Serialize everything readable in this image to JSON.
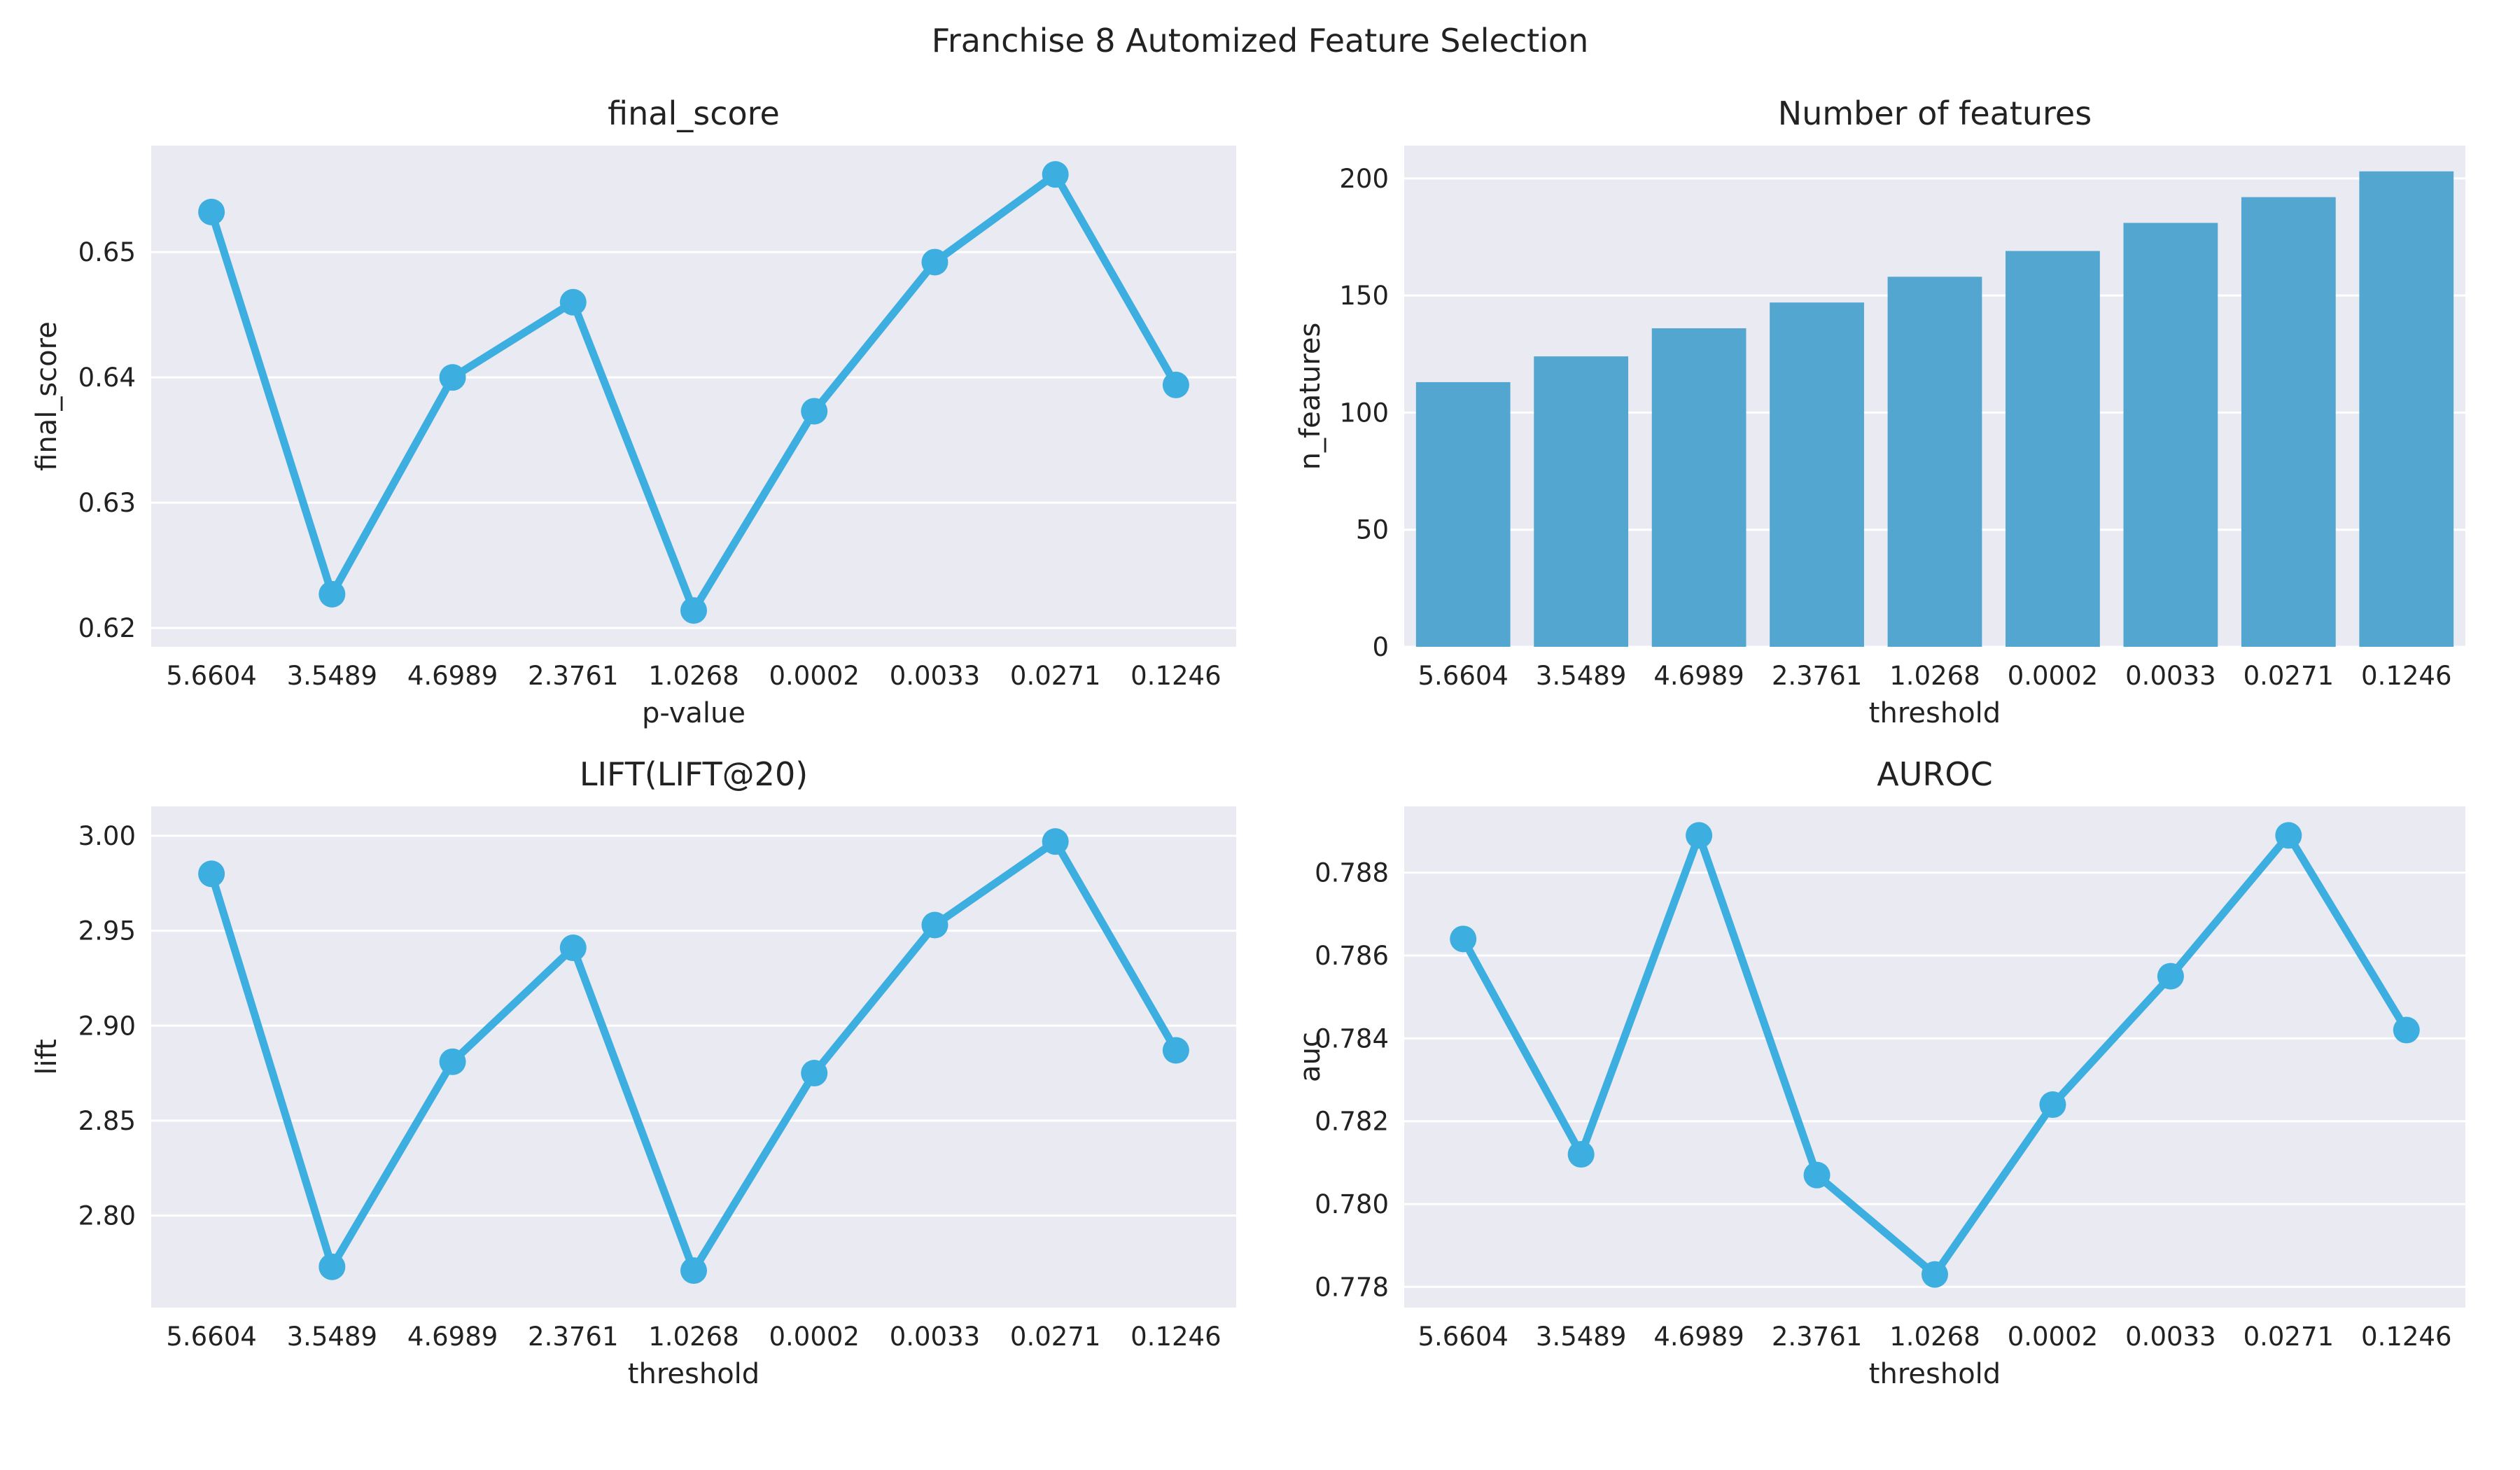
{
  "figure": {
    "suptitle": "Franchise 8 Automized Feature Selection",
    "accent_color": "#3daee0",
    "bar_color": "#52a6cf",
    "background_color": "#eaeaf2"
  },
  "chart_data": [
    {
      "id": "final_score",
      "type": "line",
      "title": "final_score",
      "xlabel": "p-value",
      "ylabel": "final_score",
      "categories": [
        "5.6604",
        "3.5489",
        "4.6989",
        "2.3761",
        "1.0268",
        "0.0002",
        "0.0033",
        "0.0271",
        "0.1246"
      ],
      "values": [
        0.6532,
        0.6227,
        0.64,
        0.646,
        0.6214,
        0.6373,
        0.6492,
        0.6562,
        0.6394
      ],
      "ylim": [
        0.6185,
        0.6585
      ],
      "yticks": [
        0.62,
        0.63,
        0.64,
        0.65
      ],
      "ytick_labels": [
        "0.62",
        "0.63",
        "0.64",
        "0.65"
      ],
      "grid": true
    },
    {
      "id": "n_features",
      "type": "bar",
      "title": "Number of features",
      "xlabel": "threshold",
      "ylabel": "n_features",
      "categories": [
        "5.6604",
        "3.5489",
        "4.6989",
        "2.3761",
        "1.0268",
        "0.0002",
        "0.0033",
        "0.0271",
        "0.1246"
      ],
      "values": [
        113,
        124,
        136,
        147,
        158,
        169,
        181,
        192,
        203
      ],
      "ylim": [
        0,
        214
      ],
      "yticks": [
        0,
        50,
        100,
        150,
        200
      ],
      "ytick_labels": [
        "0",
        "50",
        "100",
        "150",
        "200"
      ],
      "grid": true
    },
    {
      "id": "lift",
      "type": "line",
      "title": "LIFT(LIFT@20)",
      "xlabel": "threshold",
      "ylabel": "lift",
      "categories": [
        "5.6604",
        "3.5489",
        "4.6989",
        "2.3761",
        "1.0268",
        "0.0002",
        "0.0033",
        "0.0271",
        "0.1246"
      ],
      "values": [
        2.98,
        2.773,
        2.881,
        2.941,
        2.771,
        2.875,
        2.953,
        2.997,
        2.887
      ],
      "ylim": [
        2.7515,
        3.0155
      ],
      "yticks": [
        2.8,
        2.85,
        2.9,
        2.95,
        3.0
      ],
      "ytick_labels": [
        "2.80",
        "2.85",
        "2.90",
        "2.95",
        "3.00"
      ],
      "grid": true
    },
    {
      "id": "auroc",
      "type": "line",
      "title": "AUROC",
      "xlabel": "threshold",
      "ylabel": "auc",
      "categories": [
        "5.6604",
        "3.5489",
        "4.6989",
        "2.3761",
        "1.0268",
        "0.0002",
        "0.0033",
        "0.0271",
        "0.1246"
      ],
      "values": [
        0.7864,
        0.7812,
        0.7889,
        0.7807,
        0.7783,
        0.7824,
        0.7855,
        0.7889,
        0.7842
      ],
      "ylim": [
        0.7775,
        0.7896
      ],
      "yticks": [
        0.778,
        0.78,
        0.782,
        0.784,
        0.786,
        0.788
      ],
      "ytick_labels": [
        "0.778",
        "0.780",
        "0.782",
        "0.784",
        "0.786",
        "0.788"
      ],
      "grid": true
    }
  ]
}
